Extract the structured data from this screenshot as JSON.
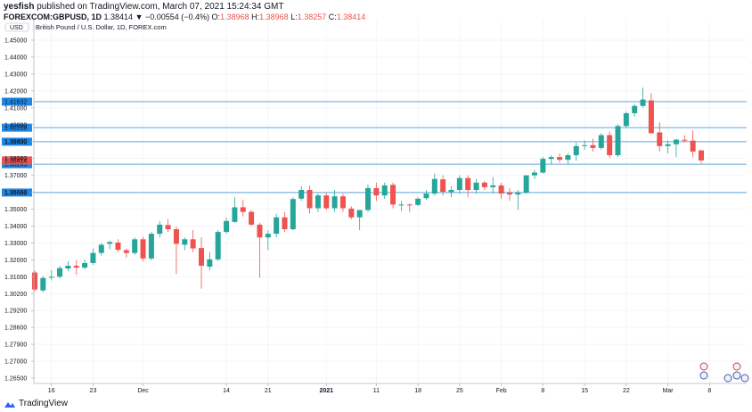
{
  "header": {
    "user": "yesfish",
    "published": "published on TradingView.com, March 07, 2021 15:24:34 GMT"
  },
  "ohlc": {
    "symbol": "FOREXCOM:GBPUSD, 1D",
    "change": "1.38414 ▼ −0.00554 (−0.4%)",
    "o_label": "O:",
    "o": "1.38968",
    "h_label": "H:",
    "h": "1.38968",
    "l_label": "L:",
    "l": "1.38257",
    "c_label": "C:",
    "c": "1.38414"
  },
  "footer": {
    "brand": "TradingView"
  },
  "colors": {
    "up": "#26a69a",
    "down": "#ef5350",
    "line": "#5fa7dc",
    "tag": "#1e88e5"
  },
  "chart_data": {
    "type": "candlestick",
    "title": "British Pound / U.S. Dollar, 1D, FOREX.com",
    "currency": "USD",
    "y_ticks": [
      "1.45000",
      "1.44000",
      "1.43000",
      "1.42000",
      "1.41000",
      "1.40000",
      "1.39000",
      "1.38000",
      "1.37000",
      "1.36000",
      "1.35000",
      "1.34000",
      "1.33000",
      "1.32000",
      "1.31000",
      "1.30200",
      "1.29200",
      "1.28600",
      "1.27900",
      "1.27000",
      "1.26500"
    ],
    "x_ticks": [
      {
        "label": "16",
        "i": 2
      },
      {
        "label": "23",
        "i": 7
      },
      {
        "label": "Dec",
        "i": 13
      },
      {
        "label": "14",
        "i": 23
      },
      {
        "label": "21",
        "i": 28
      },
      {
        "label": "2021",
        "i": 35
      },
      {
        "label": "11",
        "i": 41
      },
      {
        "label": "18",
        "i": 46
      },
      {
        "label": "25",
        "i": 51
      },
      {
        "label": "Feb",
        "i": 56
      },
      {
        "label": "8",
        "i": 61
      },
      {
        "label": "15",
        "i": 66
      },
      {
        "label": "22",
        "i": 71
      },
      {
        "label": "Mar",
        "i": 76
      },
      {
        "label": "8",
        "i": 81
      }
    ],
    "levels": [
      {
        "label": "1.41632",
        "value": 1.41632
      },
      {
        "label": "1.40209",
        "value": 1.40209
      },
      {
        "label": "1.39439",
        "value": 1.39439
      },
      {
        "label": "1.38209",
        "value": 1.38209
      },
      {
        "label": "1.36658",
        "value": 1.36658
      }
    ],
    "last_price": {
      "label": "1.38414",
      "value": 1.38414
    },
    "candles": [
      [
        1.3228,
        1.3238,
        1.3125,
        1.3135
      ],
      [
        1.313,
        1.321,
        1.312,
        1.3198
      ],
      [
        1.32,
        1.324,
        1.3185,
        1.3205
      ],
      [
        1.3205,
        1.3265,
        1.3195,
        1.3252
      ],
      [
        1.325,
        1.329,
        1.3235,
        1.3265
      ],
      [
        1.3265,
        1.3295,
        1.3215,
        1.3255
      ],
      [
        1.3255,
        1.33,
        1.3245,
        1.328
      ],
      [
        1.328,
        1.336,
        1.327,
        1.3335
      ],
      [
        1.3335,
        1.339,
        1.332,
        1.338
      ],
      [
        1.3385,
        1.34,
        1.3355,
        1.3395
      ],
      [
        1.3392,
        1.341,
        1.334,
        1.3352
      ],
      [
        1.335,
        1.336,
        1.331,
        1.3335
      ],
      [
        1.3335,
        1.342,
        1.3325,
        1.341
      ],
      [
        1.341,
        1.3425,
        1.329,
        1.3305
      ],
      [
        1.3305,
        1.345,
        1.3295,
        1.344
      ],
      [
        1.344,
        1.351,
        1.342,
        1.349
      ],
      [
        1.3488,
        1.352,
        1.345,
        1.3465
      ],
      [
        1.3465,
        1.348,
        1.322,
        1.3385
      ],
      [
        1.338,
        1.342,
        1.335,
        1.341
      ],
      [
        1.341,
        1.346,
        1.334,
        1.336
      ],
      [
        1.3362,
        1.342,
        1.314,
        1.3265
      ],
      [
        1.326,
        1.334,
        1.324,
        1.33
      ],
      [
        1.33,
        1.346,
        1.329,
        1.345
      ],
      [
        1.345,
        1.353,
        1.344,
        1.351
      ],
      [
        1.3505,
        1.364,
        1.35,
        1.3585
      ],
      [
        1.3585,
        1.3625,
        1.3535,
        1.356
      ],
      [
        1.356,
        1.357,
        1.348,
        1.349
      ],
      [
        1.349,
        1.35,
        1.32,
        1.342
      ],
      [
        1.342,
        1.346,
        1.335,
        1.344
      ],
      [
        1.344,
        1.355,
        1.342,
        1.353
      ],
      [
        1.353,
        1.356,
        1.345,
        1.3465
      ],
      [
        1.3465,
        1.364,
        1.346,
        1.363
      ],
      [
        1.3632,
        1.37,
        1.362,
        1.368
      ],
      [
        1.368,
        1.3705,
        1.355,
        1.358
      ],
      [
        1.358,
        1.366,
        1.356,
        1.365
      ],
      [
        1.365,
        1.3665,
        1.357,
        1.358
      ],
      [
        1.358,
        1.368,
        1.356,
        1.3645
      ],
      [
        1.3645,
        1.366,
        1.356,
        1.358
      ],
      [
        1.3578,
        1.359,
        1.352,
        1.353
      ],
      [
        1.353,
        1.357,
        1.346,
        1.357
      ],
      [
        1.357,
        1.371,
        1.356,
        1.369
      ],
      [
        1.369,
        1.372,
        1.362,
        1.365
      ],
      [
        1.365,
        1.372,
        1.363,
        1.3705
      ],
      [
        1.3708,
        1.372,
        1.358,
        1.36
      ],
      [
        1.36,
        1.362,
        1.3565,
        1.36
      ],
      [
        1.36,
        1.3605,
        1.356,
        1.3598
      ],
      [
        1.3598,
        1.364,
        1.359,
        1.3632
      ],
      [
        1.3635,
        1.368,
        1.3625,
        1.366
      ],
      [
        1.366,
        1.377,
        1.365,
        1.374
      ],
      [
        1.3738,
        1.376,
        1.365,
        1.367
      ],
      [
        1.3668,
        1.37,
        1.364,
        1.368
      ],
      [
        1.368,
        1.376,
        1.366,
        1.3745
      ],
      [
        1.3745,
        1.376,
        1.364,
        1.368
      ],
      [
        1.368,
        1.374,
        1.366,
        1.372
      ],
      [
        1.372,
        1.373,
        1.368,
        1.3695
      ],
      [
        1.3695,
        1.375,
        1.366,
        1.3705
      ],
      [
        1.3705,
        1.372,
        1.363,
        1.366
      ],
      [
        1.3665,
        1.369,
        1.362,
        1.3655
      ],
      [
        1.3655,
        1.368,
        1.357,
        1.3665
      ],
      [
        1.3665,
        1.376,
        1.366,
        1.376
      ],
      [
        1.376,
        1.379,
        1.374,
        1.3775
      ],
      [
        1.3775,
        1.386,
        1.377,
        1.385
      ],
      [
        1.385,
        1.387,
        1.382,
        1.386
      ],
      [
        1.386,
        1.388,
        1.383,
        1.3845
      ],
      [
        1.3845,
        1.388,
        1.382,
        1.387
      ],
      [
        1.387,
        1.394,
        1.384,
        1.392
      ],
      [
        1.392,
        1.395,
        1.39,
        1.3925
      ],
      [
        1.3925,
        1.396,
        1.389,
        1.391
      ],
      [
        1.391,
        1.399,
        1.39,
        1.398
      ],
      [
        1.398,
        1.4,
        1.3855,
        1.387
      ],
      [
        1.387,
        1.404,
        1.386,
        1.403
      ],
      [
        1.403,
        1.411,
        1.402,
        1.41
      ],
      [
        1.41,
        1.415,
        1.408,
        1.414
      ],
      [
        1.414,
        1.424,
        1.413,
        1.4175
      ],
      [
        1.417,
        1.421,
        1.399,
        1.399
      ],
      [
        1.3995,
        1.405,
        1.389,
        1.392
      ],
      [
        1.392,
        1.395,
        1.388,
        1.393
      ],
      [
        1.393,
        1.396,
        1.386,
        1.3955
      ],
      [
        1.3955,
        1.398,
        1.394,
        1.395
      ],
      [
        1.395,
        1.401,
        1.386,
        1.389
      ],
      [
        1.38968,
        1.38968,
        1.38257,
        1.38414
      ]
    ]
  }
}
